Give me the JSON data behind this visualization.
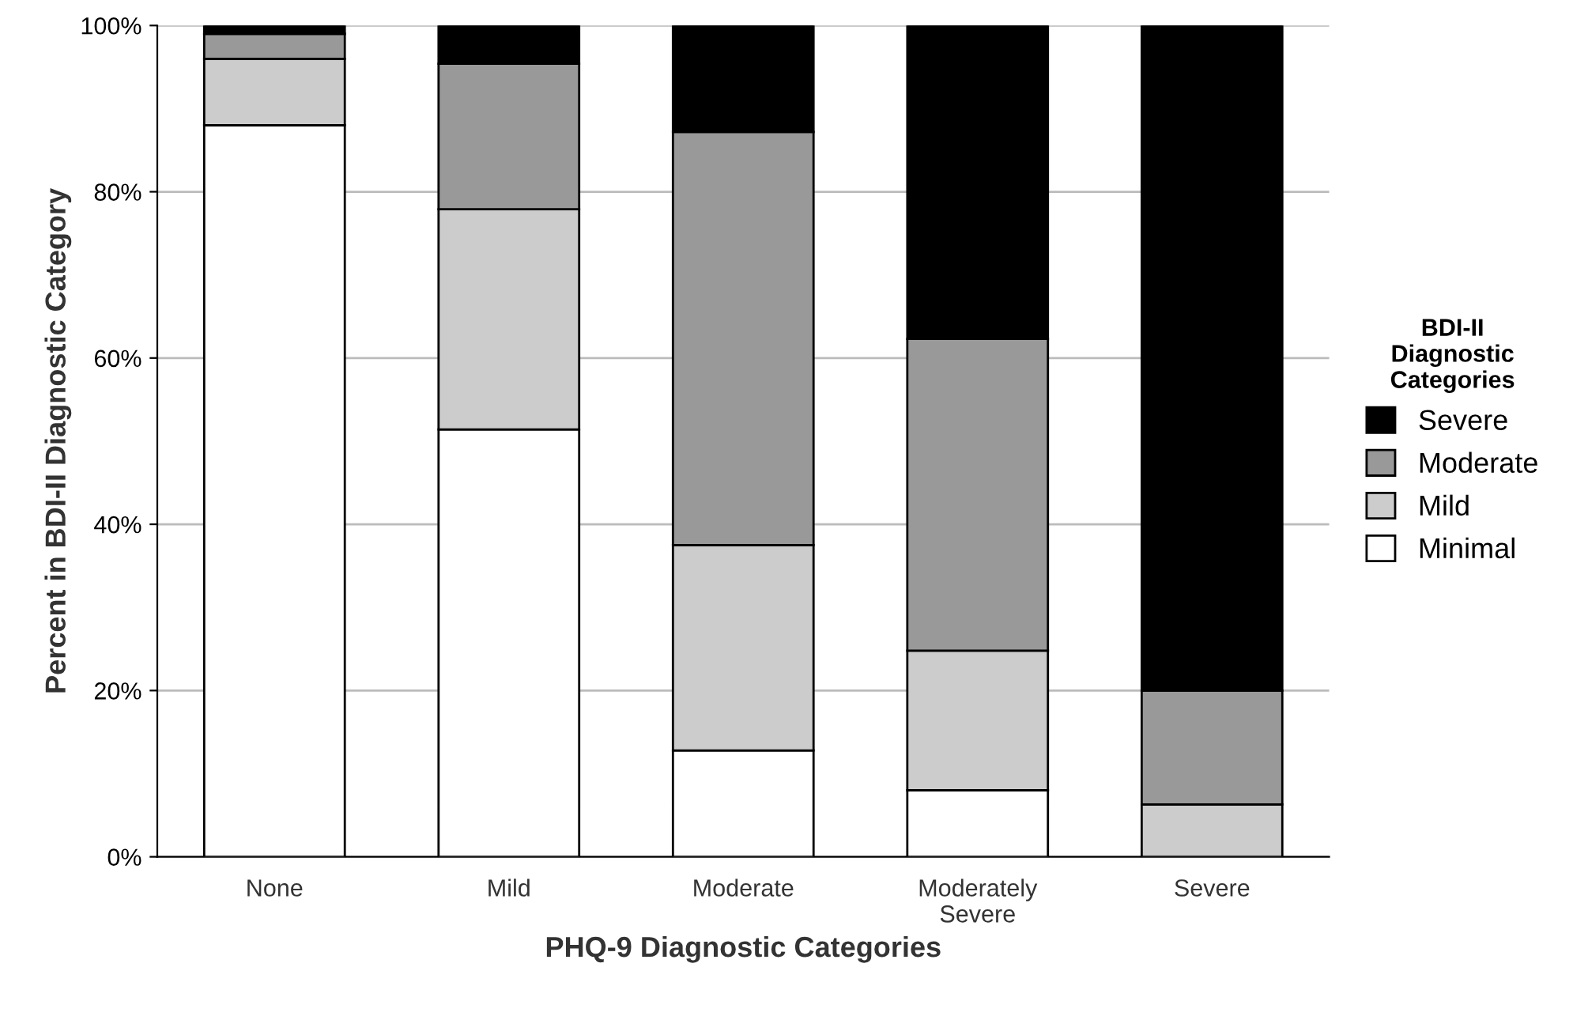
{
  "chart_data": {
    "type": "bar",
    "stacked": true,
    "xlabel": "PHQ-9 Diagnostic Categories",
    "ylabel": "Percent in BDI-II Diagnostic Category",
    "legend_title": "BDI-II\nDiagnostic\nCategories",
    "categories": [
      "None",
      "Mild",
      "Moderate",
      "Moderately\nSevere",
      "Severe"
    ],
    "series": [
      {
        "name": "Minimal",
        "color": "#ffffff",
        "values": [
          88,
          51.4,
          12.8,
          8,
          0
        ]
      },
      {
        "name": "Mild",
        "color": "#cccccc",
        "values": [
          8,
          26.5,
          24.7,
          16.8,
          6.3
        ]
      },
      {
        "name": "Moderate",
        "color": "#999999",
        "values": [
          3,
          17.5,
          49.7,
          37.5,
          13.7
        ]
      },
      {
        "name": "Severe",
        "color": "#000000",
        "values": [
          1,
          4.6,
          12.8,
          37.7,
          80
        ]
      }
    ],
    "ylim": [
      0,
      100
    ],
    "yticks": [
      {
        "value": 0,
        "label": "0%"
      },
      {
        "value": 20,
        "label": "20%"
      },
      {
        "value": 40,
        "label": "40%"
      },
      {
        "value": 60,
        "label": "60%"
      },
      {
        "value": 80,
        "label": "80%"
      },
      {
        "value": 100,
        "label": "100%"
      }
    ],
    "grid": "y",
    "legend": "right"
  }
}
